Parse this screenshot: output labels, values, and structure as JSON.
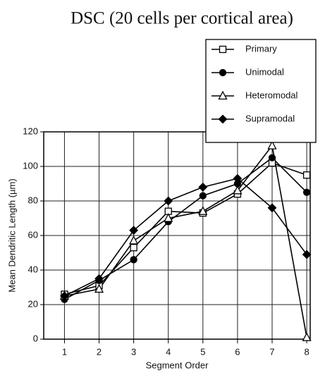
{
  "chart_data": {
    "type": "line",
    "title": "DSC (20 cells per cortical area)",
    "x_label": "Segment Order",
    "y_label": "Mean Dendritic Length (µm)",
    "x": [
      1,
      2,
      3,
      4,
      5,
      6,
      7,
      8
    ],
    "xlim": [
      0.4,
      8.1
    ],
    "xticks": [
      1,
      2,
      3,
      4,
      5,
      6,
      7,
      8
    ],
    "ylim": [
      0,
      120
    ],
    "yticks": [
      0,
      20,
      40,
      60,
      80,
      100,
      120
    ],
    "grid": true,
    "legend": "top-right",
    "series": [
      {
        "name": "Primary",
        "color": "#000000",
        "marker": "square-open",
        "values": [
          26,
          31,
          53,
          74,
          73,
          84,
          102,
          95
        ]
      },
      {
        "name": "Unimodal",
        "color": "#000000",
        "marker": "circle-filled",
        "values": [
          23,
          34,
          46,
          68,
          83,
          90,
          105,
          85
        ]
      },
      {
        "name": "Heteromodal",
        "color": "#000000",
        "marker": "triangle-open",
        "values": [
          25,
          29,
          57,
          70,
          74,
          86,
          112,
          1
        ]
      },
      {
        "name": "Supramodal",
        "color": "#000000",
        "marker": "diamond-filled",
        "values": [
          25,
          35,
          63,
          80,
          88,
          93,
          76,
          49
        ]
      }
    ]
  }
}
